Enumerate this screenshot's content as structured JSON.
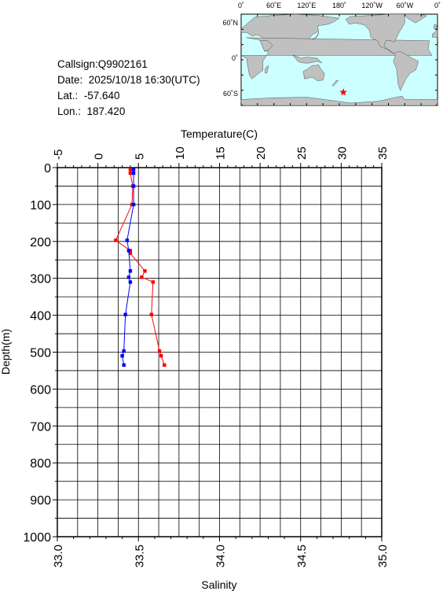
{
  "station": {
    "callsign": "Callsign:Q9902161",
    "date": "Date:  2025/10/18 16:30(UTC)",
    "lat": "Lat.:  -57.640",
    "lon": "Lon.:  187.420"
  },
  "map": {
    "lon_labels": [
      "0˚",
      "60˚E",
      "120˚E",
      "180˚",
      "120˚W",
      "60˚W",
      "0˚"
    ],
    "lat_labels": [
      "60˚N",
      "0˚",
      "60˚S"
    ],
    "ocean_color": "#ccffff",
    "land_color": "#c0c0c0",
    "marker_color": "#ff0000",
    "marker_symbol": "star",
    "marker_lon": 187.42,
    "marker_lat": -57.64
  },
  "chart_data": {
    "type": "line",
    "title": "",
    "top_axis": {
      "label": "Temperature(C)",
      "range": [
        -5,
        35
      ],
      "ticks": [
        "-5",
        "0",
        "5",
        "10",
        "15",
        "20",
        "25",
        "30",
        "35"
      ]
    },
    "bottom_axis": {
      "label": "Salinity",
      "range": [
        33.0,
        35.0
      ],
      "ticks": [
        "33.0",
        "33.5",
        "34.0",
        "34.5",
        "35.0"
      ]
    },
    "y_axis": {
      "label": "Depth(m)",
      "range": [
        0,
        1000
      ],
      "inverted": true,
      "ticks": [
        "0",
        "100",
        "200",
        "300",
        "400",
        "500",
        "600",
        "700",
        "800",
        "900",
        "1000"
      ]
    },
    "grid": true,
    "series": [
      {
        "name": "",
        "axis": "temperature",
        "color": "#ff0000",
        "points": [
          {
            "x": 4.0,
            "y": 5
          },
          {
            "x": 4.0,
            "y": 15
          },
          {
            "x": 4.3,
            "y": 50
          },
          {
            "x": 4.2,
            "y": 100
          },
          {
            "x": 2.2,
            "y": 197
          },
          {
            "x": 4.0,
            "y": 225
          },
          {
            "x": 4.0,
            "y": 232
          },
          {
            "x": 5.8,
            "y": 280
          },
          {
            "x": 5.4,
            "y": 297
          },
          {
            "x": 6.8,
            "y": 310
          },
          {
            "x": 6.6,
            "y": 398
          },
          {
            "x": 7.6,
            "y": 497
          },
          {
            "x": 7.8,
            "y": 510
          },
          {
            "x": 8.2,
            "y": 535
          }
        ]
      },
      {
        "name": "",
        "axis": "salinity",
        "color": "#0000ff",
        "points": [
          {
            "s": 33.47,
            "y": 5
          },
          {
            "s": 33.47,
            "y": 15
          },
          {
            "s": 33.47,
            "y": 50
          },
          {
            "s": 33.47,
            "y": 100
          },
          {
            "s": 33.43,
            "y": 197
          },
          {
            "s": 33.44,
            "y": 225
          },
          {
            "s": 33.45,
            "y": 280
          },
          {
            "s": 33.44,
            "y": 297
          },
          {
            "s": 33.45,
            "y": 310
          },
          {
            "s": 33.42,
            "y": 398
          },
          {
            "s": 33.41,
            "y": 497
          },
          {
            "s": 33.4,
            "y": 510
          },
          {
            "s": 33.41,
            "y": 535
          }
        ]
      }
    ]
  }
}
